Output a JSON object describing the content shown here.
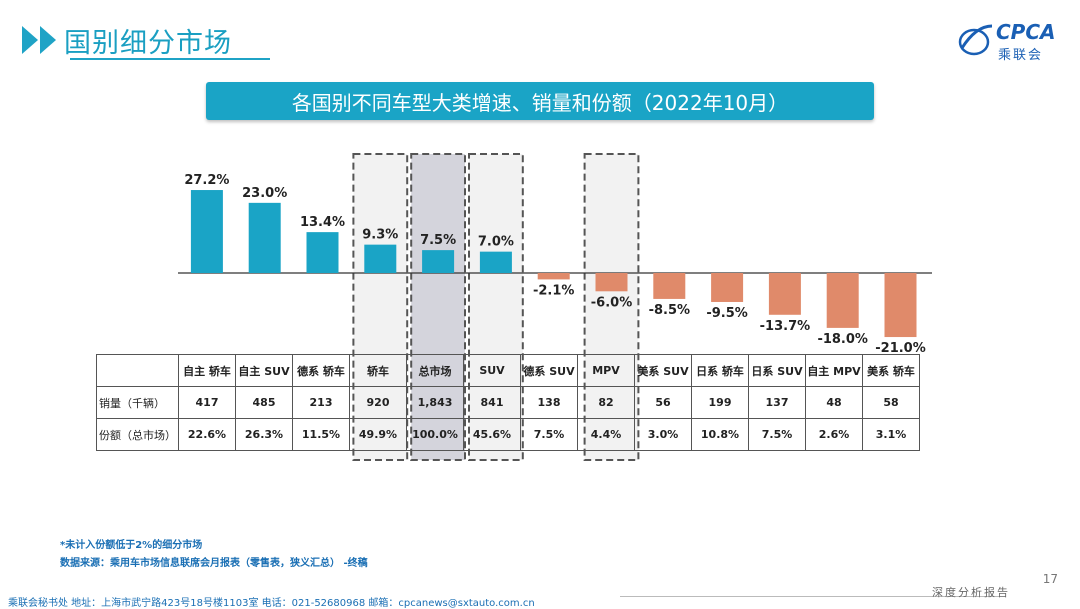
{
  "header": {
    "title": "国别细分市场"
  },
  "logo": {
    "brand": "CPCA",
    "sub": "乘联会"
  },
  "banner": {
    "title": "各国别不同车型大类增速、销量和份额（2022年10月）"
  },
  "chart_data": {
    "type": "bar",
    "title": "各国别不同车型大类增速、销量和份额（2022年10月）",
    "categories": [
      "自主 轿车",
      "自主 SUV",
      "德系 轿车",
      "轿车",
      "总市场",
      "SUV",
      "德系 SUV",
      "MPV",
      "美系 SUV",
      "日系 轿车",
      "日系 SUV",
      "自主 MPV",
      "美系 轿车"
    ],
    "values": [
      27.2,
      23.0,
      13.4,
      9.3,
      7.5,
      7.0,
      -2.1,
      -6.0,
      -8.5,
      -9.5,
      -13.7,
      -18.0,
      -21.0
    ],
    "value_labels": [
      "27.2%",
      "23.0%",
      "13.4%",
      "9.3%",
      "7.5%",
      "7.0%",
      "-2.1%",
      "-6.0%",
      "-8.5%",
      "-9.5%",
      "-13.7%",
      "-18.0%",
      "-21.0%"
    ],
    "highlighted": [
      "轿车",
      "总市场",
      "SUV",
      "MPV"
    ],
    "positive_color": "#1aa4c6",
    "negative_color": "#e08a6a",
    "ylim": [
      -21.0,
      27.2
    ]
  },
  "table": {
    "rows": [
      {
        "label": "销量（千辆）",
        "values": [
          "417",
          "485",
          "213",
          "920",
          "1,843",
          "841",
          "138",
          "82",
          "56",
          "199",
          "137",
          "48",
          "58"
        ]
      },
      {
        "label": "份额（总市场）",
        "values": [
          "22.6%",
          "26.3%",
          "11.5%",
          "49.9%",
          "100.0%",
          "45.6%",
          "7.5%",
          "4.4%",
          "3.0%",
          "10.8%",
          "7.5%",
          "2.6%",
          "3.1%"
        ]
      }
    ]
  },
  "notes": {
    "note1": "*未计入份额低于2%的细分市场",
    "note2": "数据来源：乘用车市场信息联席会月报表（零售表，狭义汇总） -终稿"
  },
  "footer": {
    "address": "乘联会秘书处   地址：上海市武宁路423号18号楼1103室  电话：021-52680968   邮箱：cpcanews@sxtauto.com.cn",
    "report": "深度分析报告",
    "page": "17"
  }
}
